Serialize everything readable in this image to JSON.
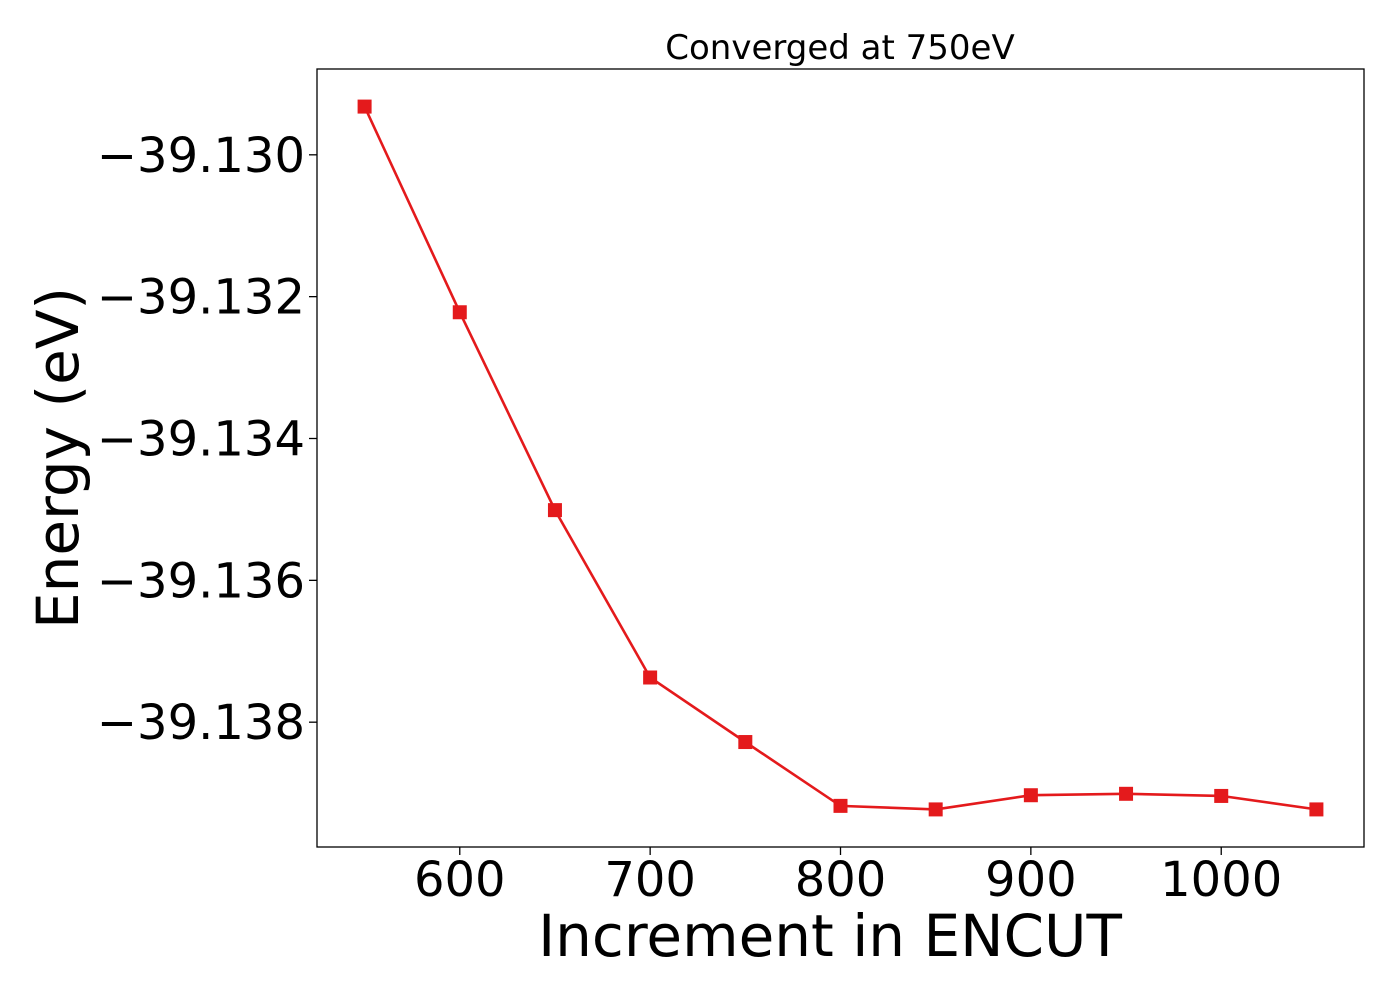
{
  "chart_data": {
    "type": "line",
    "title": "Converged at 750eV",
    "xlabel": "Increment in ENCUT",
    "ylabel": "Energy (eV)",
    "x": [
      550,
      600,
      650,
      700,
      750,
      800,
      850,
      900,
      950,
      1000,
      1050
    ],
    "series": [
      {
        "values": [
          -39.12932,
          -39.13222,
          -39.13501,
          -39.13737,
          -39.13828,
          -39.13918,
          -39.13923,
          -39.13903,
          -39.13901,
          -39.13904,
          -39.13923
        ],
        "color": "#e41a1c",
        "marker": "square"
      }
    ],
    "xlim": [
      525,
      1075
    ],
    "ylim": [
      -39.13976,
      -39.12879
    ],
    "xticks": [
      600,
      700,
      800,
      900,
      1000
    ],
    "xtick_labels": [
      "600",
      "700",
      "800",
      "900",
      "1000"
    ],
    "yticks": [
      -39.13,
      -39.132,
      -39.134,
      -39.136,
      -39.138
    ],
    "ytick_labels": [
      "−39.130",
      "−39.132",
      "−39.134",
      "−39.136",
      "−39.138"
    ],
    "grid": false,
    "legend": "none"
  }
}
